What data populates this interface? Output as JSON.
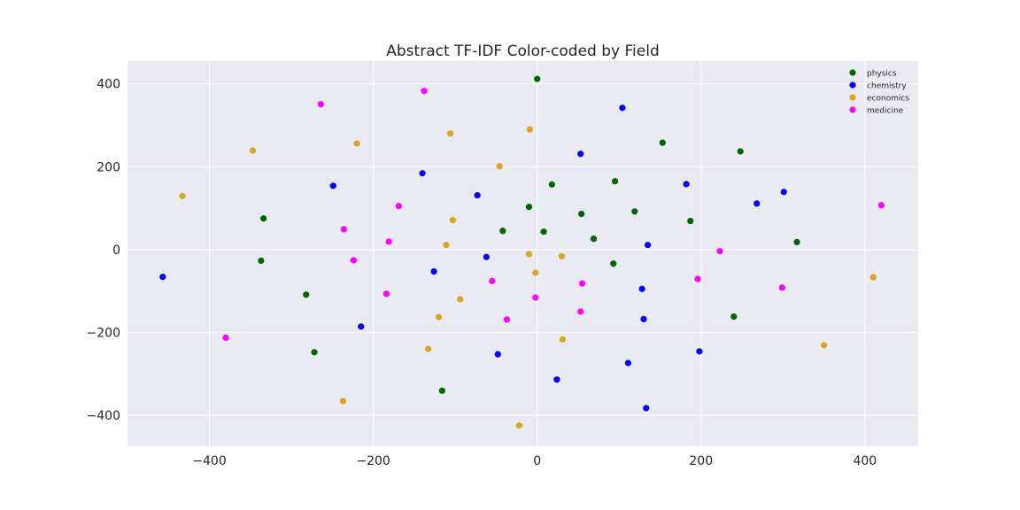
{
  "chart_data": {
    "type": "scatter",
    "title": "Abstract TF-IDF Color-coded by Field",
    "xlabel": "",
    "ylabel": "",
    "xlim": [
      -500,
      465
    ],
    "ylim": [
      -475,
      455
    ],
    "xticks": [
      -400,
      -200,
      0,
      200,
      400
    ],
    "xtick_labels": [
      "−400",
      "−200",
      "0",
      "200",
      "400"
    ],
    "yticks": [
      -400,
      -200,
      0,
      200,
      400
    ],
    "ytick_labels": [
      "−400",
      "−200",
      "0",
      "200",
      "400"
    ],
    "grid": true,
    "legend_position": "top-right",
    "series": [
      {
        "name": "physics",
        "color": "#006400",
        "points": [
          [
            0,
            412
          ],
          [
            153,
            258
          ],
          [
            248,
            237
          ],
          [
            18,
            157
          ],
          [
            95,
            165
          ],
          [
            -334,
            75
          ],
          [
            -10,
            103
          ],
          [
            54,
            86
          ],
          [
            119,
            92
          ],
          [
            187,
            69
          ],
          [
            -42,
            45
          ],
          [
            8,
            43
          ],
          [
            69,
            26
          ],
          [
            317,
            18
          ],
          [
            -337,
            -27
          ],
          [
            93,
            -34
          ],
          [
            -282,
            -109
          ],
          [
            240,
            -162
          ],
          [
            -272,
            -248
          ],
          [
            -116,
            -341
          ]
        ]
      },
      {
        "name": "chemistry",
        "color": "#0000ff",
        "points": [
          [
            104,
            342
          ],
          [
            53,
            231
          ],
          [
            -140,
            184
          ],
          [
            -249,
            154
          ],
          [
            182,
            158
          ],
          [
            -73,
            131
          ],
          [
            301,
            139
          ],
          [
            268,
            111
          ],
          [
            135,
            11
          ],
          [
            -62,
            -18
          ],
          [
            -126,
            -53
          ],
          [
            -457,
            -66
          ],
          [
            128,
            -95
          ],
          [
            -215,
            -186
          ],
          [
            130,
            -168
          ],
          [
            -48,
            -253
          ],
          [
            111,
            -274
          ],
          [
            198,
            -246
          ],
          [
            24,
            -314
          ],
          [
            133,
            -383
          ]
        ]
      },
      {
        "name": "economics",
        "color": "#daa520",
        "points": [
          [
            -9,
            290
          ],
          [
            -106,
            280
          ],
          [
            -220,
            256
          ],
          [
            -347,
            239
          ],
          [
            -46,
            201
          ],
          [
            -433,
            129
          ],
          [
            -103,
            71
          ],
          [
            -111,
            11
          ],
          [
            -10,
            -11
          ],
          [
            30,
            -16
          ],
          [
            -2,
            -56
          ],
          [
            -94,
            -120
          ],
          [
            -120,
            -163
          ],
          [
            410,
            -67
          ],
          [
            31,
            -217
          ],
          [
            -133,
            -240
          ],
          [
            350,
            -231
          ],
          [
            -237,
            -366
          ],
          [
            -22,
            -425
          ]
        ]
      },
      {
        "name": "medicine",
        "color": "#ff00ff",
        "points": [
          [
            -138,
            383
          ],
          [
            -264,
            351
          ],
          [
            -169,
            105
          ],
          [
            420,
            107
          ],
          [
            -236,
            49
          ],
          [
            -181,
            19
          ],
          [
            223,
            -4
          ],
          [
            -224,
            -26
          ],
          [
            -55,
            -76
          ],
          [
            55,
            -82
          ],
          [
            196,
            -71
          ],
          [
            -184,
            -107
          ],
          [
            -2,
            -116
          ],
          [
            299,
            -92
          ],
          [
            53,
            -150
          ],
          [
            -37,
            -169
          ],
          [
            -380,
            -213
          ]
        ]
      }
    ]
  }
}
